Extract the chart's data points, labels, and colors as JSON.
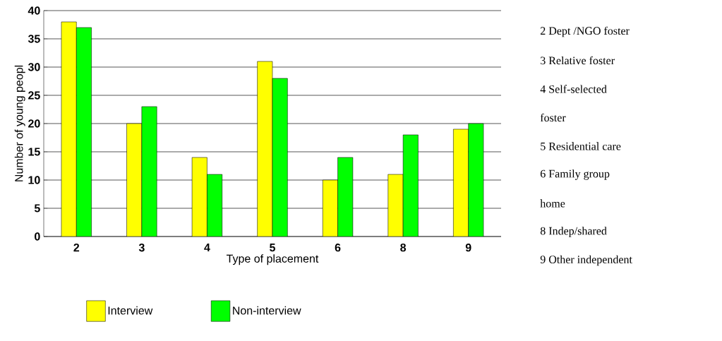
{
  "chart_data": {
    "type": "bar",
    "xlabel": "Type of placement",
    "ylabel": "Number of young peopl",
    "categories": [
      "2",
      "3",
      "4",
      "5",
      "6",
      "8",
      "9"
    ],
    "series": [
      {
        "name": "Interview",
        "color": "#ffff00",
        "values": [
          38,
          20,
          14,
          31,
          10,
          11,
          19
        ]
      },
      {
        "name": "Non-interview",
        "color": "#00ff00",
        "values": [
          37,
          23,
          11,
          28,
          14,
          18,
          20
        ]
      }
    ],
    "ylim": [
      0,
      40
    ],
    "yticks": [
      0,
      5,
      10,
      15,
      20,
      25,
      30,
      35,
      40
    ],
    "grid": "y",
    "legend": "bottom",
    "annotations": [
      "2  Dept /NGO foster",
      "3 Relative foster",
      "4  Self-selected",
      "foster",
      "5  Residential care",
      "6 Family group",
      "home",
      "8  Indep/shared",
      "9  Other independent"
    ]
  }
}
